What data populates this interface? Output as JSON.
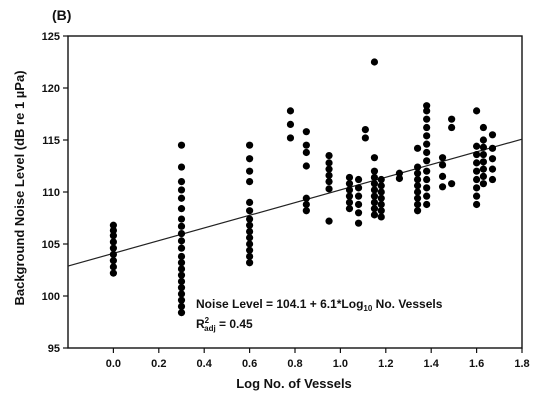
{
  "chart_data": {
    "type": "scatter",
    "panel_label": "(B)",
    "xlabel": "Log No. of Vessels",
    "ylabel": "Background Noise Level (dB re 1 µPa)",
    "xlim": [
      -0.2,
      1.8
    ],
    "ylim": [
      95,
      125
    ],
    "xticks": [
      "0.0",
      "0.2",
      "0.4",
      "0.6",
      "0.8",
      "1.0",
      "1.2",
      "1.4",
      "1.6",
      "1.8"
    ],
    "yticks": [
      "95",
      "100",
      "105",
      "110",
      "115",
      "120",
      "125"
    ],
    "grid": false,
    "regression": {
      "intercept": 104.1,
      "slope": 6.1
    },
    "annotation": {
      "equation_prefix": "Noise Level = 104.1 + 6.1*Log",
      "equation_sub": "10",
      "equation_suffix": " No. Vessels",
      "r2_main": "R",
      "r2_sup": "2",
      "r2_sub": "adj",
      "r2_value": " = 0.45"
    },
    "points": [
      [
        0.0,
        102.2
      ],
      [
        0.0,
        102.8
      ],
      [
        0.0,
        103.4
      ],
      [
        0.0,
        104.0
      ],
      [
        0.0,
        104.6
      ],
      [
        0.0,
        105.2
      ],
      [
        0.0,
        105.8
      ],
      [
        0.0,
        106.3
      ],
      [
        0.0,
        106.8
      ],
      [
        0.3,
        98.4
      ],
      [
        0.3,
        99.0
      ],
      [
        0.3,
        99.6
      ],
      [
        0.3,
        100.2
      ],
      [
        0.3,
        100.8
      ],
      [
        0.3,
        101.4
      ],
      [
        0.3,
        102.0
      ],
      [
        0.3,
        102.6
      ],
      [
        0.3,
        103.2
      ],
      [
        0.3,
        103.8
      ],
      [
        0.3,
        104.6
      ],
      [
        0.3,
        105.3
      ],
      [
        0.3,
        106.0
      ],
      [
        0.3,
        106.7
      ],
      [
        0.3,
        107.4
      ],
      [
        0.3,
        108.4
      ],
      [
        0.3,
        109.4
      ],
      [
        0.3,
        110.2
      ],
      [
        0.3,
        111.0
      ],
      [
        0.3,
        112.4
      ],
      [
        0.3,
        114.5
      ],
      [
        0.6,
        103.2
      ],
      [
        0.6,
        103.8
      ],
      [
        0.6,
        104.4
      ],
      [
        0.6,
        105.0
      ],
      [
        0.6,
        105.6
      ],
      [
        0.6,
        106.2
      ],
      [
        0.6,
        106.8
      ],
      [
        0.6,
        107.4
      ],
      [
        0.6,
        108.2
      ],
      [
        0.6,
        109.0
      ],
      [
        0.6,
        111.0
      ],
      [
        0.6,
        112.0
      ],
      [
        0.6,
        113.2
      ],
      [
        0.6,
        114.5
      ],
      [
        0.78,
        115.2
      ],
      [
        0.78,
        116.5
      ],
      [
        0.78,
        117.8
      ],
      [
        0.85,
        108.2
      ],
      [
        0.85,
        108.8
      ],
      [
        0.85,
        109.4
      ],
      [
        0.85,
        112.5
      ],
      [
        0.85,
        113.8
      ],
      [
        0.85,
        114.5
      ],
      [
        0.85,
        115.8
      ],
      [
        0.95,
        107.2
      ],
      [
        0.95,
        110.3
      ],
      [
        0.95,
        111.0
      ],
      [
        0.95,
        111.6
      ],
      [
        0.95,
        112.2
      ],
      [
        0.95,
        112.8
      ],
      [
        0.95,
        113.5
      ],
      [
        1.04,
        108.4
      ],
      [
        1.04,
        109.0
      ],
      [
        1.04,
        109.6
      ],
      [
        1.04,
        110.2
      ],
      [
        1.04,
        110.8
      ],
      [
        1.04,
        111.4
      ],
      [
        1.08,
        107.0
      ],
      [
        1.08,
        108.0
      ],
      [
        1.08,
        108.8
      ],
      [
        1.08,
        109.6
      ],
      [
        1.08,
        110.4
      ],
      [
        1.08,
        111.2
      ],
      [
        1.11,
        115.2
      ],
      [
        1.11,
        116.0
      ],
      [
        1.15,
        107.8
      ],
      [
        1.15,
        108.4
      ],
      [
        1.15,
        109.0
      ],
      [
        1.15,
        109.6
      ],
      [
        1.15,
        110.2
      ],
      [
        1.15,
        110.8
      ],
      [
        1.15,
        111.4
      ],
      [
        1.15,
        112.0
      ],
      [
        1.15,
        113.3
      ],
      [
        1.15,
        122.5
      ],
      [
        1.18,
        107.6
      ],
      [
        1.18,
        108.2
      ],
      [
        1.18,
        108.8
      ],
      [
        1.18,
        109.4
      ],
      [
        1.18,
        110.0
      ],
      [
        1.18,
        110.6
      ],
      [
        1.18,
        111.2
      ],
      [
        1.26,
        111.3
      ],
      [
        1.26,
        111.8
      ],
      [
        1.34,
        108.2
      ],
      [
        1.34,
        108.8
      ],
      [
        1.34,
        109.4
      ],
      [
        1.34,
        110.0
      ],
      [
        1.34,
        110.6
      ],
      [
        1.34,
        111.2
      ],
      [
        1.34,
        111.8
      ],
      [
        1.34,
        112.4
      ],
      [
        1.34,
        114.2
      ],
      [
        1.38,
        108.8
      ],
      [
        1.38,
        109.6
      ],
      [
        1.38,
        110.4
      ],
      [
        1.38,
        111.2
      ],
      [
        1.38,
        112.0
      ],
      [
        1.38,
        113.0
      ],
      [
        1.38,
        113.8
      ],
      [
        1.38,
        114.6
      ],
      [
        1.38,
        115.4
      ],
      [
        1.38,
        116.2
      ],
      [
        1.38,
        117.0
      ],
      [
        1.38,
        117.8
      ],
      [
        1.38,
        118.3
      ],
      [
        1.45,
        110.5
      ],
      [
        1.45,
        111.5
      ],
      [
        1.45,
        112.6
      ],
      [
        1.45,
        113.3
      ],
      [
        1.49,
        110.8
      ],
      [
        1.49,
        116.2
      ],
      [
        1.49,
        117.0
      ],
      [
        1.6,
        108.8
      ],
      [
        1.6,
        109.6
      ],
      [
        1.6,
        110.4
      ],
      [
        1.6,
        111.2
      ],
      [
        1.6,
        112.0
      ],
      [
        1.6,
        112.8
      ],
      [
        1.6,
        113.6
      ],
      [
        1.6,
        114.4
      ],
      [
        1.6,
        117.8
      ],
      [
        1.63,
        110.8
      ],
      [
        1.63,
        111.5
      ],
      [
        1.63,
        112.2
      ],
      [
        1.63,
        112.9
      ],
      [
        1.63,
        113.6
      ],
      [
        1.63,
        114.3
      ],
      [
        1.63,
        115.0
      ],
      [
        1.63,
        116.2
      ],
      [
        1.67,
        111.2
      ],
      [
        1.67,
        112.2
      ],
      [
        1.67,
        113.2
      ],
      [
        1.67,
        114.2
      ],
      [
        1.67,
        115.5
      ]
    ]
  }
}
